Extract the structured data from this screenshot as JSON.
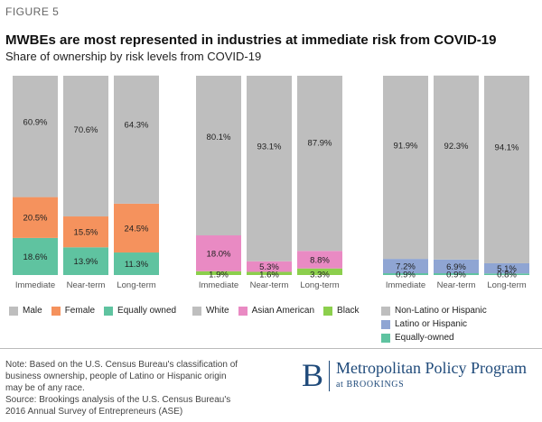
{
  "figure_label": "FIGURE 5",
  "title": "MWBEs are most represented in industries at immediate risk from COVID-19",
  "subtitle": "Share of ownership by risk levels from COVID-19",
  "chart_data": [
    {
      "type": "bar",
      "stacked": true,
      "categories": [
        "Immediate",
        "Near-term",
        "Long-term"
      ],
      "ylim": [
        0,
        100
      ],
      "series": [
        {
          "name": "Equally owned",
          "color": "#5fc3a0",
          "values": [
            18.6,
            13.9,
            11.3
          ],
          "labels": [
            "18.6%",
            "13.9%",
            "11.3%"
          ]
        },
        {
          "name": "Female",
          "color": "#f5925d",
          "values": [
            20.5,
            15.5,
            24.5
          ],
          "labels": [
            "20.5%",
            "15.5%",
            "24.5%"
          ]
        },
        {
          "name": "Male",
          "color": "#bebebe",
          "values": [
            60.9,
            70.6,
            64.3
          ],
          "labels": [
            "60.9%",
            "70.6%",
            "64.3%"
          ]
        }
      ],
      "legend": [
        "Male",
        "Female",
        "Equally owned"
      ]
    },
    {
      "type": "bar",
      "stacked": true,
      "categories": [
        "Immediate",
        "Near-term",
        "Long-term"
      ],
      "ylim": [
        0,
        100
      ],
      "series": [
        {
          "name": "Black",
          "color": "#8ccf4d",
          "values": [
            1.9,
            1.6,
            3.3
          ],
          "labels": [
            "1.9%",
            "1.6%",
            "3.3%"
          ]
        },
        {
          "name": "Asian American",
          "color": "#e98ac3",
          "values": [
            18.0,
            5.3,
            8.8
          ],
          "labels": [
            "18.0%",
            "5.3%",
            "8.8%"
          ]
        },
        {
          "name": "White",
          "color": "#bebebe",
          "values": [
            80.1,
            93.1,
            87.9
          ],
          "labels": [
            "80.1%",
            "93.1%",
            "87.9%"
          ]
        }
      ],
      "legend": [
        "White",
        "Asian American",
        "Black"
      ]
    },
    {
      "type": "bar",
      "stacked": true,
      "categories": [
        "Immediate",
        "Near-term",
        "Long-term"
      ],
      "ylim": [
        0,
        100
      ],
      "series": [
        {
          "name": "Equally-owned",
          "color": "#5fc3a0",
          "values": [
            0.9,
            0.9,
            0.8
          ],
          "labels": [
            "0.9%",
            "0.9%",
            "0.8%"
          ]
        },
        {
          "name": "Latino or Hispanic",
          "color": "#8fa5d3",
          "values": [
            7.2,
            6.9,
            5.1
          ],
          "labels": [
            "7.2%",
            "6.9%",
            "5.1%"
          ]
        },
        {
          "name": "Non-Latino or Hispanic",
          "color": "#bebebe",
          "values": [
            91.9,
            92.3,
            94.1
          ],
          "labels": [
            "91.9%",
            "92.3%",
            "94.1%"
          ]
        }
      ],
      "legend": [
        "Non-Latino or Hispanic",
        "Latino or Hispanic",
        "Equally-owned"
      ]
    }
  ],
  "note": {
    "line1": "Note: Based on the U.S. Census Bureau's classification of",
    "line2": "business ownership, people of Latino or Hispanic origin",
    "line3": "may be of any race.",
    "line4": "Source: Brookings analysis of the U.S. Census Bureau's",
    "line5": "2016 Annual Survey of Entrepreneurs (ASE)"
  },
  "brand": {
    "mark": "B",
    "program": "Metropolitan Policy Program",
    "sub": "at BROOKINGS"
  }
}
